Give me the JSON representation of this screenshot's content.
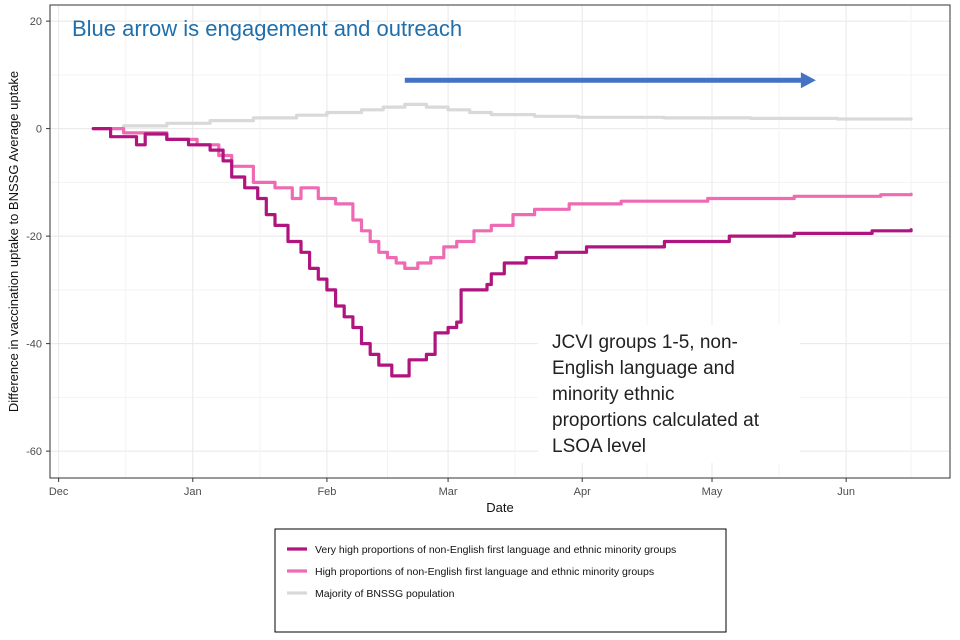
{
  "chart_data": {
    "type": "line",
    "xlabel": "Date",
    "ylabel": "Difference in vaccination uptake to BNSSG Average uptake",
    "ylim": [
      -65,
      23
    ],
    "y_ticks": [
      20,
      0,
      -20,
      -40,
      -60
    ],
    "x_tick_labels": [
      "Dec",
      "Jan",
      "Feb",
      "Mar",
      "Apr",
      "May",
      "Jun"
    ],
    "x_unit": "days since 1 Dec",
    "x_ticks": [
      0,
      31,
      62,
      90,
      121,
      151,
      182
    ],
    "xlim": [
      -2,
      206
    ],
    "headline": "Blue arrow is engagement and outreach",
    "headline_color": "#1f6fad",
    "arrow": {
      "from": [
        80,
        9
      ],
      "to": [
        175,
        9
      ],
      "color": "#4472c4"
    },
    "annotation": [
      "JCVI groups 1-5, non-",
      "English language and",
      "minority ethnic",
      "proportions calculated at",
      "LSOA level"
    ],
    "legend": [
      {
        "label": "Very high proportions of non-English first language and ethnic minority groups",
        "color": "#b0157f"
      },
      {
        "label": "High proportions of non-English first language and ethnic minority groups",
        "color": "#ee6bb4"
      },
      {
        "label": "Majority of BNSSG population",
        "color": "#d9d9d9"
      }
    ],
    "series": [
      {
        "name": "Very high proportions of non-English first language and ethnic minority groups",
        "color": "#b0157f",
        "points": [
          [
            8,
            0
          ],
          [
            12,
            -1.5
          ],
          [
            18,
            -3
          ],
          [
            20,
            -1
          ],
          [
            25,
            -2
          ],
          [
            30,
            -3
          ],
          [
            35,
            -4
          ],
          [
            38,
            -6
          ],
          [
            40,
            -9
          ],
          [
            43,
            -11
          ],
          [
            46,
            -13
          ],
          [
            48,
            -16
          ],
          [
            50,
            -18
          ],
          [
            53,
            -21
          ],
          [
            56,
            -23
          ],
          [
            58,
            -26
          ],
          [
            60,
            -28
          ],
          [
            62,
            -30
          ],
          [
            64,
            -33
          ],
          [
            66,
            -35
          ],
          [
            68,
            -37
          ],
          [
            70,
            -40
          ],
          [
            72,
            -42
          ],
          [
            74,
            -44
          ],
          [
            77,
            -46
          ],
          [
            80,
            -46
          ],
          [
            81,
            -43
          ],
          [
            85,
            -42
          ],
          [
            87,
            -38
          ],
          [
            90,
            -37
          ],
          [
            92,
            -36
          ],
          [
            93,
            -30
          ],
          [
            99,
            -29
          ],
          [
            100,
            -27
          ],
          [
            103,
            -25
          ],
          [
            108,
            -24
          ],
          [
            115,
            -23
          ],
          [
            122,
            -22
          ],
          [
            140,
            -21
          ],
          [
            155,
            -20
          ],
          [
            170,
            -19.5
          ],
          [
            188,
            -19
          ],
          [
            197,
            -18.8
          ]
        ]
      },
      {
        "name": "High proportions of non-English first language and ethnic minority groups",
        "color": "#ee6bb4",
        "points": [
          [
            8,
            0
          ],
          [
            15,
            -0.8
          ],
          [
            25,
            -2
          ],
          [
            32,
            -3
          ],
          [
            37,
            -5
          ],
          [
            40,
            -7
          ],
          [
            45,
            -10
          ],
          [
            50,
            -11
          ],
          [
            54,
            -13
          ],
          [
            56,
            -11
          ],
          [
            60,
            -13
          ],
          [
            64,
            -14
          ],
          [
            68,
            -17
          ],
          [
            70,
            -19
          ],
          [
            72,
            -21
          ],
          [
            74,
            -23
          ],
          [
            76,
            -24
          ],
          [
            78,
            -25
          ],
          [
            80,
            -26
          ],
          [
            83,
            -25
          ],
          [
            86,
            -24
          ],
          [
            89,
            -22
          ],
          [
            92,
            -21
          ],
          [
            96,
            -19
          ],
          [
            100,
            -18
          ],
          [
            105,
            -16
          ],
          [
            110,
            -15
          ],
          [
            118,
            -14
          ],
          [
            130,
            -13.5
          ],
          [
            150,
            -13
          ],
          [
            170,
            -12.6
          ],
          [
            190,
            -12.3
          ],
          [
            197,
            -12.2
          ]
        ]
      },
      {
        "name": "Majority of BNSSG population",
        "color": "#d9d9d9",
        "points": [
          [
            8,
            0
          ],
          [
            15,
            0.5
          ],
          [
            25,
            1
          ],
          [
            35,
            1.5
          ],
          [
            45,
            2
          ],
          [
            55,
            2.5
          ],
          [
            62,
            3
          ],
          [
            70,
            3.5
          ],
          [
            75,
            4
          ],
          [
            80,
            4.5
          ],
          [
            85,
            4
          ],
          [
            90,
            3.5
          ],
          [
            95,
            3
          ],
          [
            100,
            2.6
          ],
          [
            110,
            2.3
          ],
          [
            120,
            2.1
          ],
          [
            140,
            2
          ],
          [
            160,
            1.9
          ],
          [
            180,
            1.8
          ],
          [
            197,
            1.8
          ]
        ]
      }
    ]
  }
}
